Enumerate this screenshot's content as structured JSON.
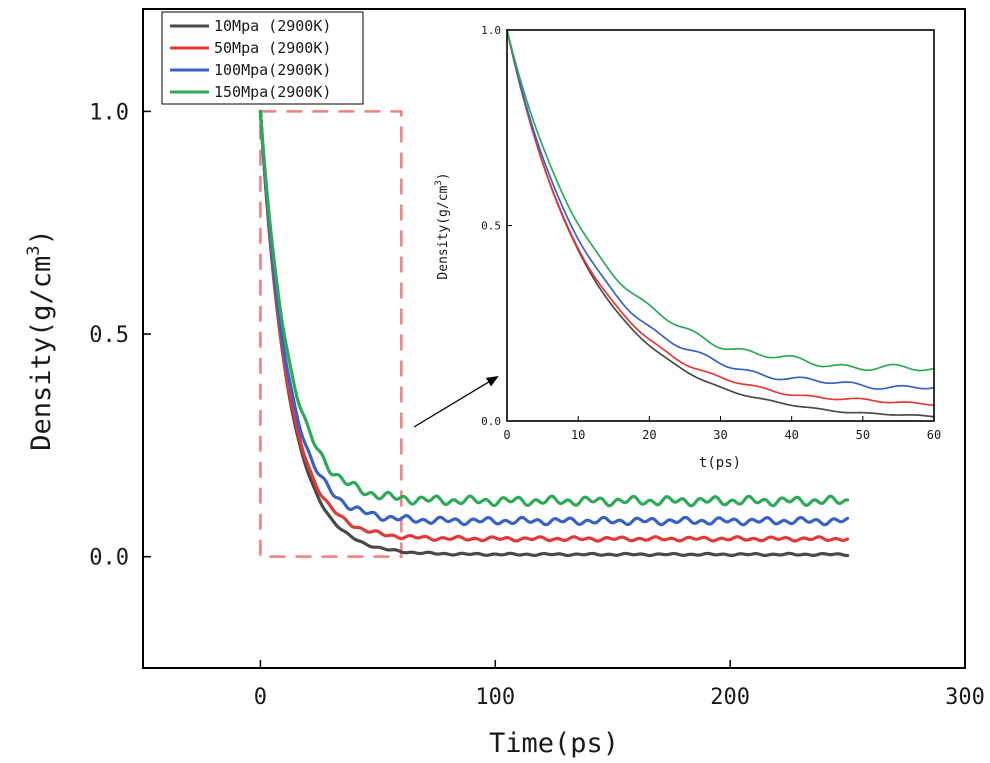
{
  "chart_data": {
    "type": "line",
    "main": {
      "xlabel": "Time(ps)",
      "ylabel": "Density(g/cm",
      "ylabel_sup": "3",
      "ylabel_close": ")",
      "xlim": [
        -50,
        300
      ],
      "ylim": [
        -0.25,
        1.23
      ],
      "xticks": [
        0,
        100,
        200,
        300
      ],
      "xtick_labels": [
        "0",
        "100",
        "200",
        "300"
      ],
      "yticks": [
        0.0,
        0.5,
        1.0
      ],
      "ytick_labels": [
        "0.0",
        "0.5",
        "1.0"
      ],
      "zoom_region": {
        "x": [
          0,
          60
        ],
        "y": [
          0,
          1.0
        ]
      },
      "x_end": 250
    },
    "inset": {
      "xlabel": "t(ps)",
      "ylabel": "Density(g/cm",
      "ylabel_sup": "3",
      "ylabel_close": ")",
      "xlim": [
        0,
        60
      ],
      "ylim": [
        0,
        1.0
      ],
      "xticks": [
        0,
        10,
        20,
        30,
        40,
        50,
        60
      ],
      "xtick_labels": [
        "0",
        "10",
        "20",
        "30",
        "40",
        "50",
        "60"
      ],
      "yticks": [
        0.0,
        0.5,
        1.0
      ],
      "ytick_labels": [
        "0.0",
        "0.5",
        "1.0"
      ]
    },
    "legend_position": "top-left",
    "series": [
      {
        "name": "10Mpa (2900K)",
        "color": "#4a4a4a",
        "start": 1.0,
        "plateau": 0.005,
        "tau": 12.0,
        "wiggle": 0.002
      },
      {
        "name": "50Mpa (2900K)",
        "color": "#e03a3a",
        "start": 1.0,
        "plateau": 0.04,
        "tau": 11.5,
        "wiggle": 0.004
      },
      {
        "name": "100Mpa(2900K)",
        "color": "#3a62c0",
        "start": 1.0,
        "plateau": 0.08,
        "tau": 11.5,
        "wiggle": 0.007
      },
      {
        "name": "150Mpa(2900K)",
        "color": "#2fa85a",
        "start": 1.0,
        "plateau": 0.125,
        "tau": 12.0,
        "wiggle": 0.009
      }
    ]
  }
}
